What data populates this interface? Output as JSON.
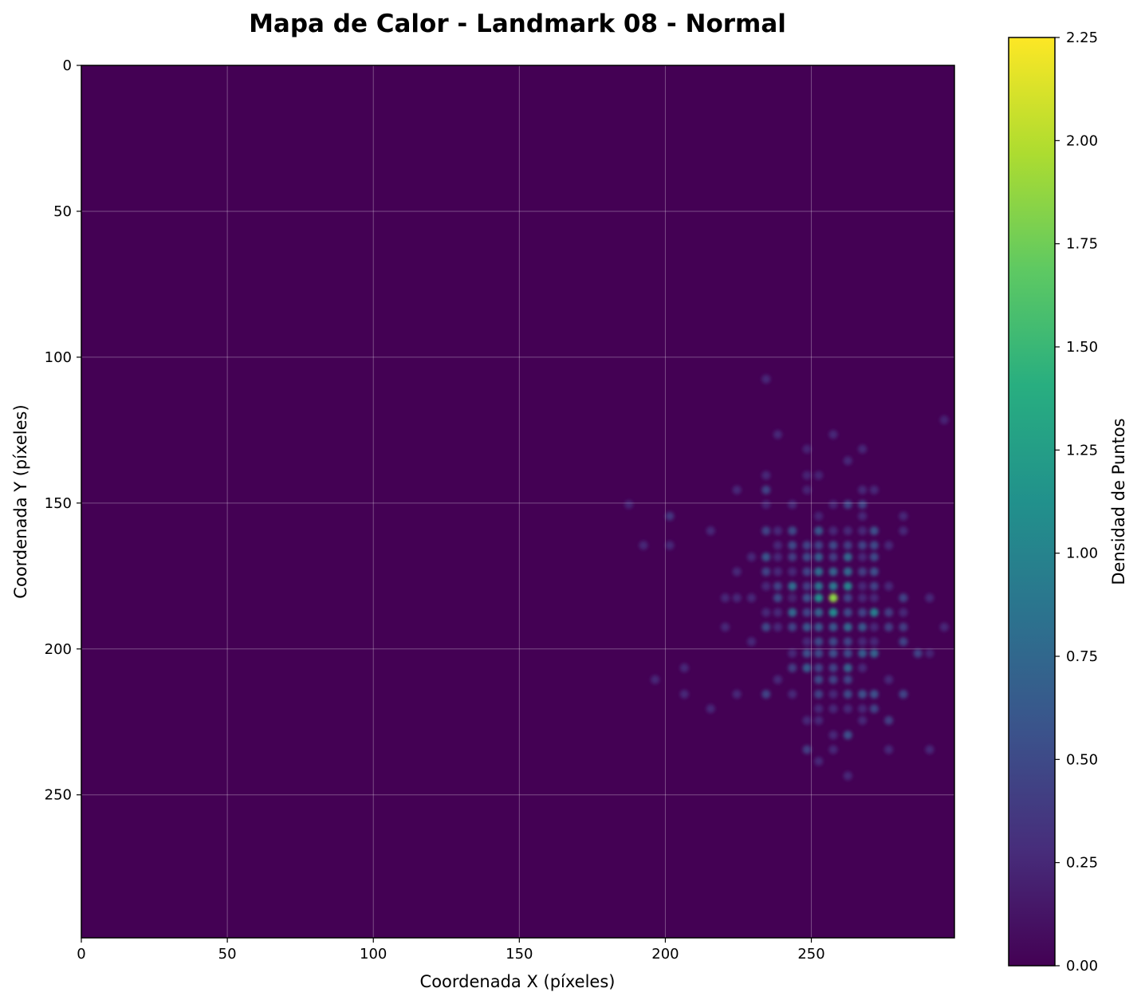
{
  "chart_data": {
    "type": "heatmap",
    "title": "Mapa de Calor - Landmark 08 - Normal",
    "xlabel": "Coordenada X (píxeles)",
    "ylabel": "Coordenada Y (píxeles)",
    "xlim": [
      0,
      299
    ],
    "ylim": [
      299,
      0
    ],
    "y_axis_inverted": true,
    "x_ticks": [
      0,
      50,
      100,
      150,
      200,
      250
    ],
    "y_ticks": [
      0,
      50,
      100,
      150,
      200,
      250
    ],
    "grid": true,
    "colormap": "viridis",
    "colorbar": {
      "label": "Densidad de Puntos",
      "min": 0,
      "max": 2.25,
      "ticks": [
        "0.00",
        "0.25",
        "0.50",
        "0.75",
        "1.00",
        "1.25",
        "1.50",
        "1.75",
        "2.00",
        "2.25"
      ]
    },
    "colors": {
      "background": "#440154",
      "peak": "#fde725"
    },
    "points": [
      {
        "x": 257.5,
        "y": 182.5,
        "v": 1.85
      },
      {
        "x": 252.5,
        "y": 182.5,
        "v": 1.1
      },
      {
        "x": 257.5,
        "y": 187.5,
        "v": 1.05
      },
      {
        "x": 262.5,
        "y": 178.5,
        "v": 1.0
      },
      {
        "x": 257.5,
        "y": 178.5,
        "v": 0.9
      },
      {
        "x": 252.5,
        "y": 178.5,
        "v": 0.85
      },
      {
        "x": 252.5,
        "y": 173.5,
        "v": 0.8
      },
      {
        "x": 271.5,
        "y": 187.5,
        "v": 0.95
      },
      {
        "x": 243.5,
        "y": 178.5,
        "v": 0.8
      },
      {
        "x": 243.5,
        "y": 187.5,
        "v": 0.75
      },
      {
        "x": 262.5,
        "y": 173.5,
        "v": 0.75
      },
      {
        "x": 262.5,
        "y": 168.5,
        "v": 0.75
      },
      {
        "x": 252.5,
        "y": 187.5,
        "v": 0.7
      },
      {
        "x": 257.5,
        "y": 173.5,
        "v": 0.7
      },
      {
        "x": 262.5,
        "y": 192.5,
        "v": 0.75
      },
      {
        "x": 252.5,
        "y": 168.5,
        "v": 0.65
      },
      {
        "x": 257.5,
        "y": 192.5,
        "v": 0.6
      },
      {
        "x": 248.5,
        "y": 206.5,
        "v": 0.65
      },
      {
        "x": 262.5,
        "y": 206.5,
        "v": 0.7
      },
      {
        "x": 267.5,
        "y": 201.5,
        "v": 0.65
      },
      {
        "x": 271.5,
        "y": 201.5,
        "v": 0.7
      },
      {
        "x": 234.5,
        "y": 168.5,
        "v": 0.6
      },
      {
        "x": 234.5,
        "y": 192.5,
        "v": 0.5
      },
      {
        "x": 234.5,
        "y": 173.5,
        "v": 0.45
      },
      {
        "x": 238.5,
        "y": 182.5,
        "v": 0.5
      },
      {
        "x": 238.5,
        "y": 178.5,
        "v": 0.45
      },
      {
        "x": 243.5,
        "y": 164.5,
        "v": 0.5
      },
      {
        "x": 243.5,
        "y": 159.5,
        "v": 0.5
      },
      {
        "x": 243.5,
        "y": 192.5,
        "v": 0.45
      },
      {
        "x": 248.5,
        "y": 164.5,
        "v": 0.45
      },
      {
        "x": 248.5,
        "y": 168.5,
        "v": 0.5
      },
      {
        "x": 248.5,
        "y": 173.5,
        "v": 0.45
      },
      {
        "x": 248.5,
        "y": 178.5,
        "v": 0.4
      },
      {
        "x": 248.5,
        "y": 182.5,
        "v": 0.55
      },
      {
        "x": 248.5,
        "y": 187.5,
        "v": 0.45
      },
      {
        "x": 248.5,
        "y": 192.5,
        "v": 0.6
      },
      {
        "x": 248.5,
        "y": 201.5,
        "v": 0.55
      },
      {
        "x": 252.5,
        "y": 159.5,
        "v": 0.6
      },
      {
        "x": 252.5,
        "y": 164.5,
        "v": 0.45
      },
      {
        "x": 252.5,
        "y": 192.5,
        "v": 0.6
      },
      {
        "x": 252.5,
        "y": 197.5,
        "v": 0.5
      },
      {
        "x": 252.5,
        "y": 201.5,
        "v": 0.5
      },
      {
        "x": 252.5,
        "y": 206.5,
        "v": 0.45
      },
      {
        "x": 252.5,
        "y": 210.5,
        "v": 0.5
      },
      {
        "x": 252.5,
        "y": 215.5,
        "v": 0.45
      },
      {
        "x": 257.5,
        "y": 164.5,
        "v": 0.5
      },
      {
        "x": 257.5,
        "y": 168.5,
        "v": 0.4
      },
      {
        "x": 257.5,
        "y": 197.5,
        "v": 0.5
      },
      {
        "x": 257.5,
        "y": 201.5,
        "v": 0.55
      },
      {
        "x": 257.5,
        "y": 206.5,
        "v": 0.45
      },
      {
        "x": 257.5,
        "y": 210.5,
        "v": 0.45
      },
      {
        "x": 262.5,
        "y": 164.5,
        "v": 0.4
      },
      {
        "x": 262.5,
        "y": 182.5,
        "v": 0.45
      },
      {
        "x": 262.5,
        "y": 187.5,
        "v": 0.5
      },
      {
        "x": 262.5,
        "y": 197.5,
        "v": 0.45
      },
      {
        "x": 262.5,
        "y": 201.5,
        "v": 0.5
      },
      {
        "x": 262.5,
        "y": 210.5,
        "v": 0.45
      },
      {
        "x": 262.5,
        "y": 215.5,
        "v": 0.5
      },
      {
        "x": 262.5,
        "y": 229.5,
        "v": 0.55
      },
      {
        "x": 262.5,
        "y": 150.5,
        "v": 0.45
      },
      {
        "x": 267.5,
        "y": 150.5,
        "v": 0.45
      },
      {
        "x": 267.5,
        "y": 164.5,
        "v": 0.45
      },
      {
        "x": 267.5,
        "y": 173.5,
        "v": 0.4
      },
      {
        "x": 267.5,
        "y": 187.5,
        "v": 0.45
      },
      {
        "x": 267.5,
        "y": 192.5,
        "v": 0.6
      },
      {
        "x": 267.5,
        "y": 215.5,
        "v": 0.55
      },
      {
        "x": 271.5,
        "y": 159.5,
        "v": 0.55
      },
      {
        "x": 271.5,
        "y": 164.5,
        "v": 0.5
      },
      {
        "x": 271.5,
        "y": 168.5,
        "v": 0.5
      },
      {
        "x": 271.5,
        "y": 173.5,
        "v": 0.55
      },
      {
        "x": 271.5,
        "y": 178.5,
        "v": 0.45
      },
      {
        "x": 271.5,
        "y": 215.5,
        "v": 0.55
      },
      {
        "x": 271.5,
        "y": 220.5,
        "v": 0.45
      },
      {
        "x": 234.5,
        "y": 145.5,
        "v": 0.45
      },
      {
        "x": 234.5,
        "y": 159.5,
        "v": 0.45
      },
      {
        "x": 234.5,
        "y": 215.5,
        "v": 0.45
      },
      {
        "x": 243.5,
        "y": 168.5,
        "v": 0.4
      },
      {
        "x": 243.5,
        "y": 182.5,
        "v": 0.35
      },
      {
        "x": 243.5,
        "y": 206.5,
        "v": 0.4
      },
      {
        "x": 281.5,
        "y": 182.5,
        "v": 0.45
      },
      {
        "x": 281.5,
        "y": 192.5,
        "v": 0.4
      },
      {
        "x": 281.5,
        "y": 197.5,
        "v": 0.45
      },
      {
        "x": 281.5,
        "y": 215.5,
        "v": 0.45
      },
      {
        "x": 276.5,
        "y": 187.5,
        "v": 0.4
      },
      {
        "x": 276.5,
        "y": 192.5,
        "v": 0.4
      },
      {
        "x": 276.5,
        "y": 224.5,
        "v": 0.4
      },
      {
        "x": 286.5,
        "y": 201.5,
        "v": 0.45
      },
      {
        "x": 248.5,
        "y": 234.5,
        "v": 0.4
      },
      {
        "x": 201.5,
        "y": 154.5,
        "v": 0.35
      },
      {
        "x": 234.5,
        "y": 107.5,
        "v": 0.25
      },
      {
        "x": 238.5,
        "y": 126.5,
        "v": 0.25
      },
      {
        "x": 257.5,
        "y": 126.5,
        "v": 0.25
      },
      {
        "x": 248.5,
        "y": 131.5,
        "v": 0.22
      },
      {
        "x": 267.5,
        "y": 131.5,
        "v": 0.25
      },
      {
        "x": 262.5,
        "y": 135.5,
        "v": 0.25
      },
      {
        "x": 295.5,
        "y": 121.5,
        "v": 0.22
      },
      {
        "x": 234.5,
        "y": 140.5,
        "v": 0.25
      },
      {
        "x": 248.5,
        "y": 140.5,
        "v": 0.22
      },
      {
        "x": 252.5,
        "y": 140.5,
        "v": 0.22
      },
      {
        "x": 224.5,
        "y": 145.5,
        "v": 0.25
      },
      {
        "x": 248.5,
        "y": 145.5,
        "v": 0.22
      },
      {
        "x": 267.5,
        "y": 145.5,
        "v": 0.25
      },
      {
        "x": 271.5,
        "y": 145.5,
        "v": 0.25
      },
      {
        "x": 187.5,
        "y": 150.5,
        "v": 0.22
      },
      {
        "x": 234.5,
        "y": 150.5,
        "v": 0.22
      },
      {
        "x": 243.5,
        "y": 150.5,
        "v": 0.25
      },
      {
        "x": 257.5,
        "y": 150.5,
        "v": 0.22
      },
      {
        "x": 252.5,
        "y": 154.5,
        "v": 0.22
      },
      {
        "x": 267.5,
        "y": 154.5,
        "v": 0.25
      },
      {
        "x": 281.5,
        "y": 154.5,
        "v": 0.25
      },
      {
        "x": 215.5,
        "y": 159.5,
        "v": 0.25
      },
      {
        "x": 238.5,
        "y": 159.5,
        "v": 0.25
      },
      {
        "x": 257.5,
        "y": 159.5,
        "v": 0.25
      },
      {
        "x": 262.5,
        "y": 159.5,
        "v": 0.25
      },
      {
        "x": 267.5,
        "y": 159.5,
        "v": 0.25
      },
      {
        "x": 281.5,
        "y": 159.5,
        "v": 0.25
      },
      {
        "x": 192.5,
        "y": 164.5,
        "v": 0.25
      },
      {
        "x": 201.5,
        "y": 164.5,
        "v": 0.25
      },
      {
        "x": 238.5,
        "y": 164.5,
        "v": 0.25
      },
      {
        "x": 276.5,
        "y": 164.5,
        "v": 0.25
      },
      {
        "x": 229.5,
        "y": 168.5,
        "v": 0.25
      },
      {
        "x": 238.5,
        "y": 168.5,
        "v": 0.25
      },
      {
        "x": 267.5,
        "y": 168.5,
        "v": 0.25
      },
      {
        "x": 224.5,
        "y": 173.5,
        "v": 0.25
      },
      {
        "x": 238.5,
        "y": 173.5,
        "v": 0.25
      },
      {
        "x": 243.5,
        "y": 173.5,
        "v": 0.25
      },
      {
        "x": 234.5,
        "y": 178.5,
        "v": 0.25
      },
      {
        "x": 267.5,
        "y": 178.5,
        "v": 0.25
      },
      {
        "x": 276.5,
        "y": 178.5,
        "v": 0.25
      },
      {
        "x": 220.5,
        "y": 182.5,
        "v": 0.25
      },
      {
        "x": 224.5,
        "y": 182.5,
        "v": 0.25
      },
      {
        "x": 229.5,
        "y": 182.5,
        "v": 0.25
      },
      {
        "x": 243.5,
        "y": 182.5,
        "v": 0.2
      },
      {
        "x": 267.5,
        "y": 182.5,
        "v": 0.25
      },
      {
        "x": 271.5,
        "y": 182.5,
        "v": 0.25
      },
      {
        "x": 290.5,
        "y": 182.5,
        "v": 0.25
      },
      {
        "x": 234.5,
        "y": 187.5,
        "v": 0.25
      },
      {
        "x": 238.5,
        "y": 187.5,
        "v": 0.25
      },
      {
        "x": 281.5,
        "y": 187.5,
        "v": 0.25
      },
      {
        "x": 220.5,
        "y": 192.5,
        "v": 0.25
      },
      {
        "x": 238.5,
        "y": 192.5,
        "v": 0.25
      },
      {
        "x": 271.5,
        "y": 192.5,
        "v": 0.25
      },
      {
        "x": 295.5,
        "y": 192.5,
        "v": 0.25
      },
      {
        "x": 229.5,
        "y": 197.5,
        "v": 0.25
      },
      {
        "x": 248.5,
        "y": 197.5,
        "v": 0.25
      },
      {
        "x": 267.5,
        "y": 197.5,
        "v": 0.25
      },
      {
        "x": 271.5,
        "y": 197.5,
        "v": 0.25
      },
      {
        "x": 243.5,
        "y": 201.5,
        "v": 0.25
      },
      {
        "x": 290.5,
        "y": 201.5,
        "v": 0.22
      },
      {
        "x": 206.5,
        "y": 206.5,
        "v": 0.25
      },
      {
        "x": 267.5,
        "y": 206.5,
        "v": 0.25
      },
      {
        "x": 196.5,
        "y": 210.5,
        "v": 0.25
      },
      {
        "x": 238.5,
        "y": 210.5,
        "v": 0.25
      },
      {
        "x": 276.5,
        "y": 210.5,
        "v": 0.25
      },
      {
        "x": 206.5,
        "y": 215.5,
        "v": 0.25
      },
      {
        "x": 224.5,
        "y": 215.5,
        "v": 0.25
      },
      {
        "x": 243.5,
        "y": 215.5,
        "v": 0.25
      },
      {
        "x": 257.5,
        "y": 215.5,
        "v": 0.25
      },
      {
        "x": 215.5,
        "y": 220.5,
        "v": 0.25
      },
      {
        "x": 252.5,
        "y": 220.5,
        "v": 0.25
      },
      {
        "x": 257.5,
        "y": 220.5,
        "v": 0.25
      },
      {
        "x": 262.5,
        "y": 220.5,
        "v": 0.25
      },
      {
        "x": 267.5,
        "y": 220.5,
        "v": 0.25
      },
      {
        "x": 248.5,
        "y": 224.5,
        "v": 0.25
      },
      {
        "x": 252.5,
        "y": 224.5,
        "v": 0.25
      },
      {
        "x": 267.5,
        "y": 224.5,
        "v": 0.25
      },
      {
        "x": 257.5,
        "y": 229.5,
        "v": 0.25
      },
      {
        "x": 257.5,
        "y": 234.5,
        "v": 0.25
      },
      {
        "x": 276.5,
        "y": 234.5,
        "v": 0.25
      },
      {
        "x": 290.5,
        "y": 234.5,
        "v": 0.25
      },
      {
        "x": 252.5,
        "y": 238.5,
        "v": 0.25
      },
      {
        "x": 262.5,
        "y": 243.5,
        "v": 0.25
      }
    ]
  }
}
